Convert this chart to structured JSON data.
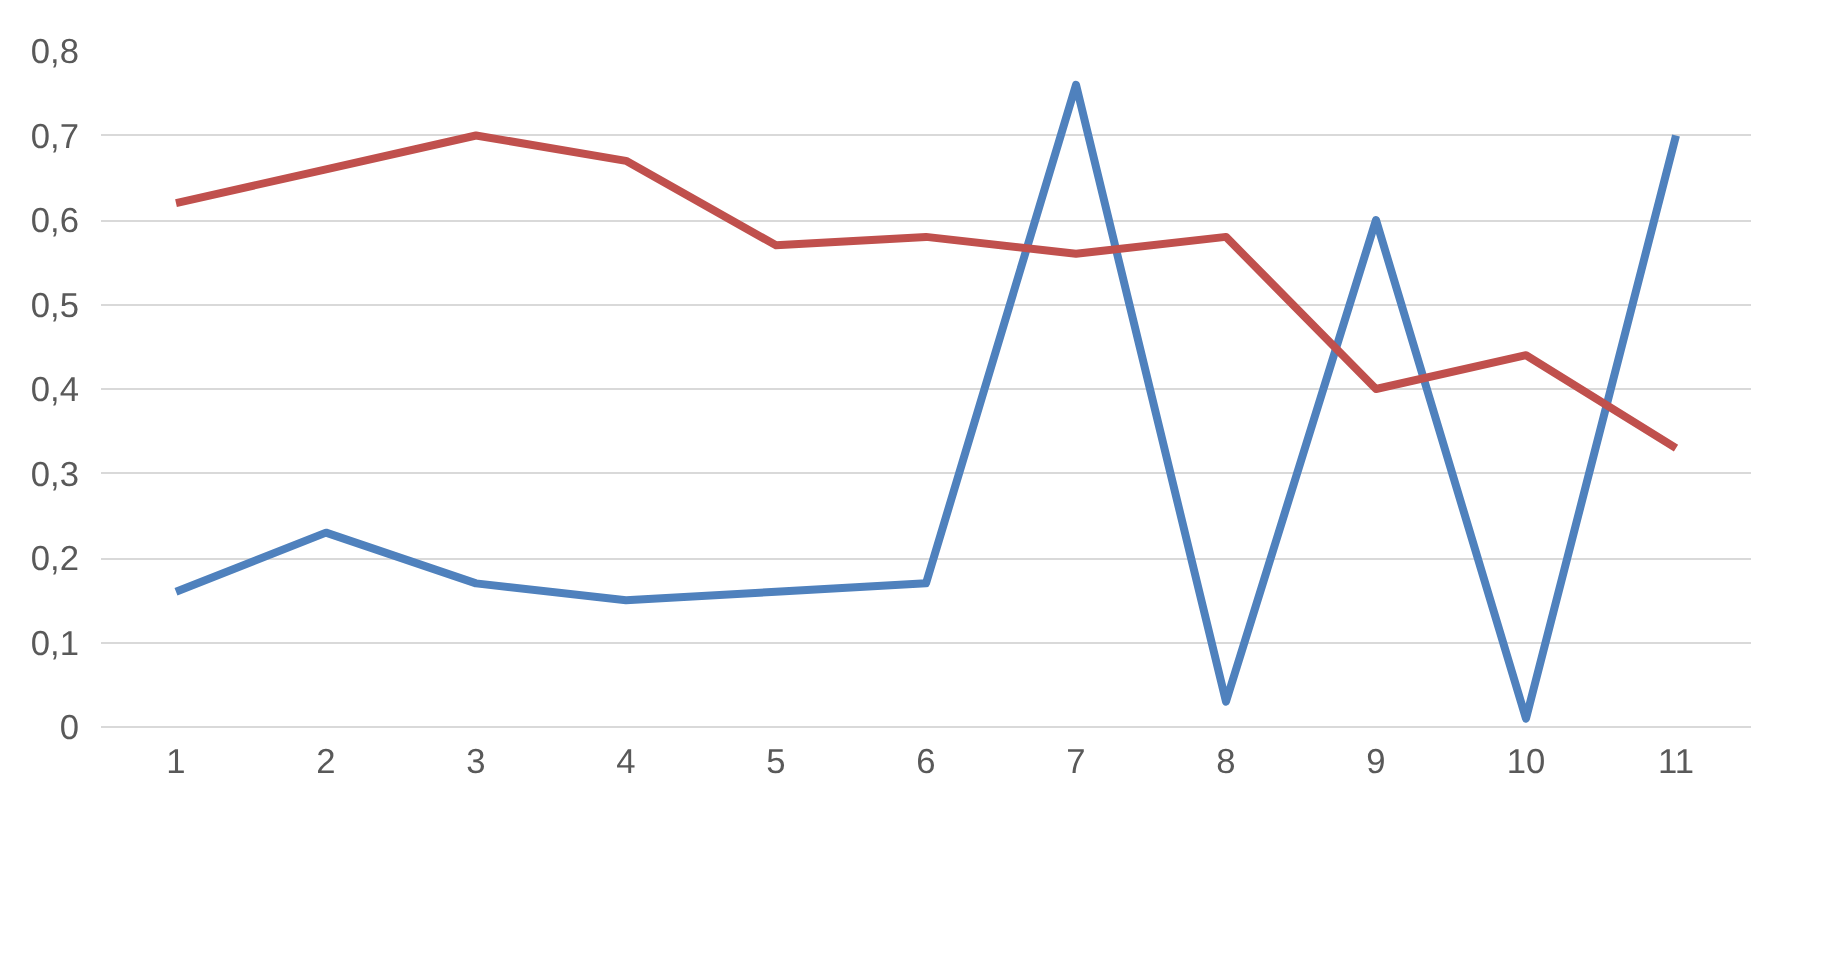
{
  "chart_data": {
    "type": "line",
    "categories": [
      "1",
      "2",
      "3",
      "4",
      "5",
      "6",
      "7",
      "8",
      "9",
      "10",
      "11"
    ],
    "series": [
      {
        "color": "#4f81bd",
        "values": [
          0.16,
          0.23,
          0.17,
          0.15,
          0.16,
          0.17,
          0.76,
          0.03,
          0.6,
          0.01,
          0.7
        ]
      },
      {
        "color": "#c0504d",
        "values": [
          0.62,
          0.66,
          0.7,
          0.67,
          0.57,
          0.58,
          0.56,
          0.58,
          0.4,
          0.44,
          0.33
        ]
      }
    ],
    "ylim": [
      0,
      0.8
    ],
    "yticks": [
      0,
      {
        "value": 0.1,
        "label": "0,1"
      },
      {
        "value": 0.2,
        "label": "0,2"
      },
      {
        "value": 0.3,
        "label": "0,3"
      },
      {
        "value": 0.4,
        "label": "0,4"
      },
      {
        "value": 0.5,
        "label": "0,5"
      },
      {
        "value": 0.6,
        "label": "0,6"
      },
      {
        "value": 0.7,
        "label": "0,7"
      },
      {
        "value": 0.8,
        "label": "0,8"
      }
    ],
    "grid": "y",
    "marker": "none",
    "line_style": "solid"
  }
}
